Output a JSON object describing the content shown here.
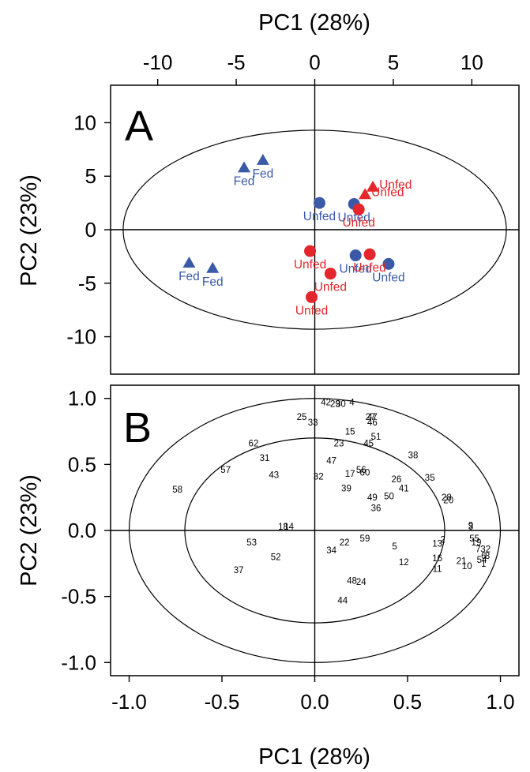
{
  "colors": {
    "fed": "#3a5aa8",
    "unfed_blue": "#3a5aa8",
    "unfed_red": "#e3262b"
  },
  "chart_data": [
    {
      "panel": "A",
      "type": "scatter",
      "title": "",
      "xlabel": "PC1 (28%)",
      "ylabel": "PC2 (23%)",
      "xlim": [
        -13,
        13
      ],
      "ylim": [
        -13.5,
        13.5
      ],
      "xticks": [
        -10,
        -5,
        0,
        5,
        10
      ],
      "yticks": [
        10,
        5,
        0,
        -5,
        -10
      ],
      "grid": false,
      "ellipse": {
        "cx": 0,
        "cy": 0,
        "rx": 12.2,
        "ry": 9.3
      },
      "points": [
        {
          "label": "Fed",
          "x": -4.5,
          "y": 5.8,
          "marker": "triangle",
          "color": "blue"
        },
        {
          "label": "Fed",
          "x": -3.3,
          "y": 6.5,
          "marker": "triangle",
          "color": "blue"
        },
        {
          "label": "Fed",
          "x": -8.0,
          "y": -3.1,
          "marker": "triangle",
          "color": "blue"
        },
        {
          "label": "Fed",
          "x": -6.5,
          "y": -3.6,
          "marker": "triangle",
          "color": "blue"
        },
        {
          "label": "Unfed",
          "x": 3.7,
          "y": 4.0,
          "marker": "triangle",
          "color": "red"
        },
        {
          "label": "Unfed",
          "x": 3.2,
          "y": 3.3,
          "marker": "triangle",
          "color": "red"
        },
        {
          "label": "Unfed",
          "x": 0.3,
          "y": 2.5,
          "marker": "circle",
          "color": "blue"
        },
        {
          "label": "Unfed",
          "x": 2.5,
          "y": 2.4,
          "marker": "circle",
          "color": "blue"
        },
        {
          "label": "Unfed",
          "x": 2.8,
          "y": 1.9,
          "marker": "circle",
          "color": "red"
        },
        {
          "label": "Unfed",
          "x": 2.6,
          "y": -2.4,
          "marker": "circle",
          "color": "blue"
        },
        {
          "label": "Unfed",
          "x": 4.7,
          "y": -3.2,
          "marker": "circle",
          "color": "blue"
        },
        {
          "label": "Unfed",
          "x": 3.5,
          "y": -2.3,
          "marker": "circle",
          "color": "red"
        },
        {
          "label": "Unfed",
          "x": -0.3,
          "y": -2.0,
          "marker": "circle",
          "color": "red"
        },
        {
          "label": "Unfed",
          "x": 1.0,
          "y": -4.1,
          "marker": "circle",
          "color": "red"
        },
        {
          "label": "Unfed",
          "x": -0.2,
          "y": -6.3,
          "marker": "circle",
          "color": "red"
        }
      ]
    },
    {
      "panel": "B",
      "type": "scatter",
      "title": "",
      "xlabel": "PC1 (28%)",
      "ylabel": "PC2 (23%)",
      "xlim": [
        -1.1,
        1.1
      ],
      "ylim": [
        -1.1,
        1.1
      ],
      "xticks": [
        -1.0,
        -0.5,
        0.0,
        0.5,
        1.0
      ],
      "yticks": [
        1.0,
        0.5,
        0.0,
        -0.5,
        -1.0
      ],
      "grid": false,
      "circles": [
        1.0,
        0.7
      ],
      "points": [
        {
          "label": "42",
          "x": 0.06,
          "y": 0.97
        },
        {
          "label": "29",
          "x": 0.11,
          "y": 0.96
        },
        {
          "label": "30",
          "x": 0.14,
          "y": 0.96
        },
        {
          "label": "4",
          "x": 0.2,
          "y": 0.97
        },
        {
          "label": "25",
          "x": -0.07,
          "y": 0.86
        },
        {
          "label": "33",
          "x": -0.01,
          "y": 0.82
        },
        {
          "label": "27",
          "x": 0.3,
          "y": 0.86
        },
        {
          "label": "47",
          "x": 0.31,
          "y": 0.86
        },
        {
          "label": "46",
          "x": 0.31,
          "y": 0.82
        },
        {
          "label": "15",
          "x": 0.19,
          "y": 0.75
        },
        {
          "label": "51",
          "x": 0.33,
          "y": 0.71
        },
        {
          "label": "45",
          "x": 0.29,
          "y": 0.66
        },
        {
          "label": "62",
          "x": -0.33,
          "y": 0.66
        },
        {
          "label": "23",
          "x": 0.13,
          "y": 0.66
        },
        {
          "label": "38",
          "x": 0.53,
          "y": 0.57
        },
        {
          "label": "31",
          "x": -0.27,
          "y": 0.55
        },
        {
          "label": "47",
          "x": 0.09,
          "y": 0.53
        },
        {
          "label": "57",
          "x": -0.48,
          "y": 0.46
        },
        {
          "label": "43",
          "x": -0.22,
          "y": 0.42
        },
        {
          "label": "32",
          "x": 0.02,
          "y": 0.41
        },
        {
          "label": "17",
          "x": 0.19,
          "y": 0.43
        },
        {
          "label": "56",
          "x": 0.25,
          "y": 0.46
        },
        {
          "label": "60",
          "x": 0.27,
          "y": 0.44
        },
        {
          "label": "26",
          "x": 0.44,
          "y": 0.39
        },
        {
          "label": "35",
          "x": 0.62,
          "y": 0.4
        },
        {
          "label": "58",
          "x": -0.74,
          "y": 0.31
        },
        {
          "label": "39",
          "x": 0.17,
          "y": 0.32
        },
        {
          "label": "41",
          "x": 0.48,
          "y": 0.32
        },
        {
          "label": "49",
          "x": 0.31,
          "y": 0.25
        },
        {
          "label": "50",
          "x": 0.4,
          "y": 0.26
        },
        {
          "label": "28",
          "x": 0.71,
          "y": 0.25
        },
        {
          "label": "20",
          "x": 0.72,
          "y": 0.23
        },
        {
          "label": "36",
          "x": 0.33,
          "y": 0.17
        },
        {
          "label": "18",
          "x": -0.17,
          "y": 0.03
        },
        {
          "label": "14",
          "x": -0.14,
          "y": 0.03
        },
        {
          "label": "9",
          "x": 0.84,
          "y": 0.04
        },
        {
          "label": "3",
          "x": 0.84,
          "y": 0.03
        },
        {
          "label": "59",
          "x": 0.27,
          "y": -0.06
        },
        {
          "label": "53",
          "x": -0.34,
          "y": -0.09
        },
        {
          "label": "22",
          "x": 0.16,
          "y": -0.09
        },
        {
          "label": "2",
          "x": 0.69,
          "y": -0.07
        },
        {
          "label": "55",
          "x": 0.86,
          "y": -0.06
        },
        {
          "label": "13",
          "x": 0.66,
          "y": -0.1
        },
        {
          "label": "19",
          "x": 0.87,
          "y": -0.09
        },
        {
          "label": "5",
          "x": 0.43,
          "y": -0.12
        },
        {
          "label": "34",
          "x": 0.09,
          "y": -0.15
        },
        {
          "label": "7",
          "x": 0.88,
          "y": -0.14
        },
        {
          "label": "32",
          "x": 0.92,
          "y": -0.14
        },
        {
          "label": "52",
          "x": -0.21,
          "y": -0.2
        },
        {
          "label": "6",
          "x": 0.91,
          "y": -0.19
        },
        {
          "label": "8",
          "x": 0.93,
          "y": -0.19
        },
        {
          "label": "54",
          "x": 0.9,
          "y": -0.22
        },
        {
          "label": "16",
          "x": 0.66,
          "y": -0.21
        },
        {
          "label": "21",
          "x": 0.79,
          "y": -0.23
        },
        {
          "label": "1",
          "x": 0.91,
          "y": -0.25
        },
        {
          "label": "12",
          "x": 0.48,
          "y": -0.24
        },
        {
          "label": "10",
          "x": 0.82,
          "y": -0.27
        },
        {
          "label": "11",
          "x": 0.66,
          "y": -0.29
        },
        {
          "label": "37",
          "x": -0.41,
          "y": -0.3
        },
        {
          "label": "48",
          "x": 0.2,
          "y": -0.38
        },
        {
          "label": "24",
          "x": 0.25,
          "y": -0.39
        },
        {
          "label": "44",
          "x": 0.15,
          "y": -0.53
        }
      ]
    }
  ]
}
